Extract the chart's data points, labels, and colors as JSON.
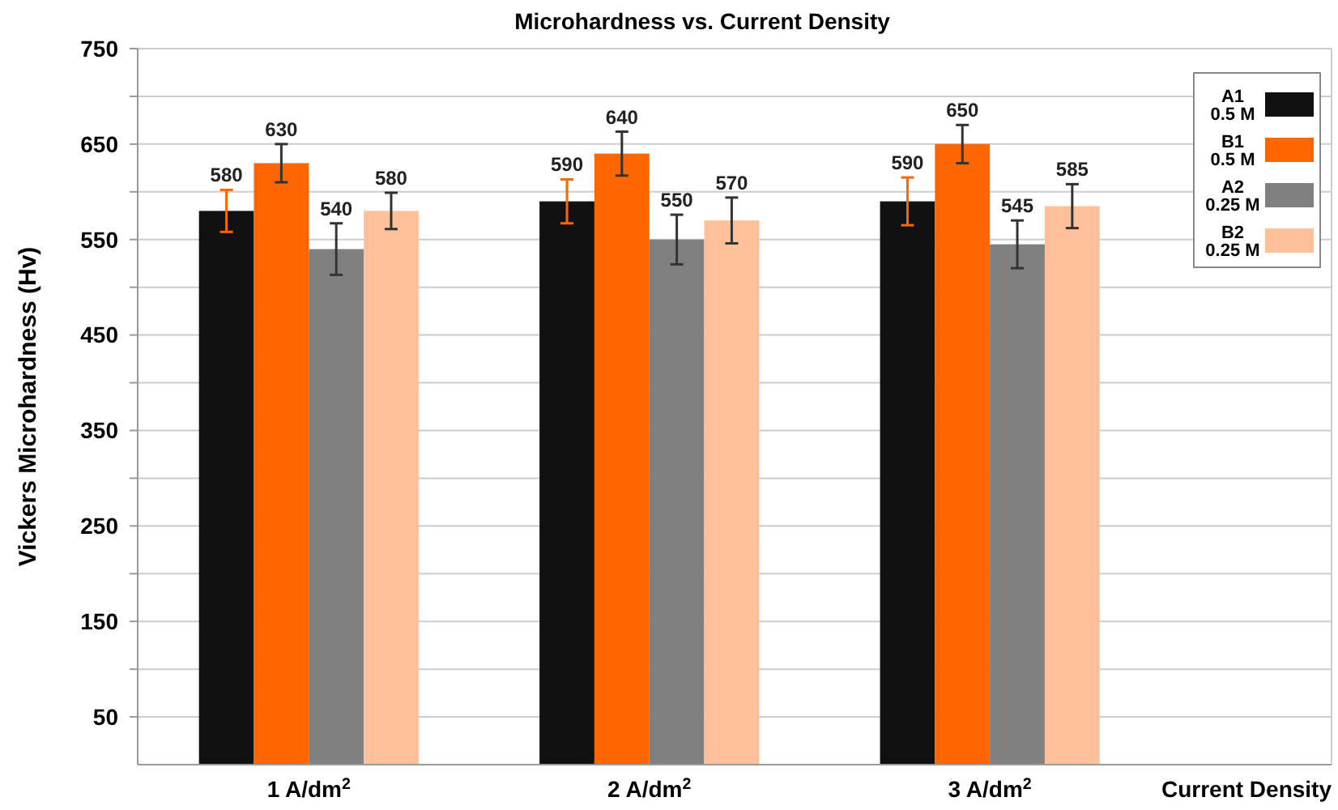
{
  "chart_data": {
    "type": "bar",
    "title": "Microhardness vs. Current Density",
    "xlabel": "Current Density",
    "ylabel": "Vickers Microhardness (Hv)",
    "categories": [
      "1 A/dm$^{2}$",
      "2 A/dm$^{2}$",
      "3 A/dm$^{2}$"
    ],
    "series": [
      {
        "name": "A1 0.5 M",
        "color": "#111111",
        "values": [
          580,
          590,
          590
        ],
        "errors": [
          22,
          23,
          25
        ]
      },
      {
        "name": "B1 0.5 M",
        "color": "#ff6600",
        "values": [
          630,
          640,
          650
        ],
        "errors": [
          20,
          23,
          20
        ]
      },
      {
        "name": "A2 0.25 M",
        "color": "#808080",
        "values": [
          540,
          550,
          545
        ],
        "errors": [
          27,
          26,
          25
        ]
      },
      {
        "name": "B2 0.25 M",
        "color": "#ffc09a",
        "values": [
          580,
          570,
          585
        ],
        "errors": [
          19,
          24,
          23
        ]
      }
    ],
    "ylim": [
      0,
      750
    ],
    "yticks": [
      50,
      {
        "value": 100,
        "label": null
      },
      150,
      {
        "value": 200,
        "label": null
      },
      250,
      {
        "value": 300,
        "label": null
      },
      350,
      {
        "value": 400,
        "label": null
      },
      450,
      {
        "value": 500,
        "label": null
      },
      550,
      {
        "value": 600,
        "label": null
      },
      650,
      {
        "value": 700,
        "label": null
      },
      750
    ],
    "grid": "y",
    "legend": "top right",
    "data_labels": true
  }
}
